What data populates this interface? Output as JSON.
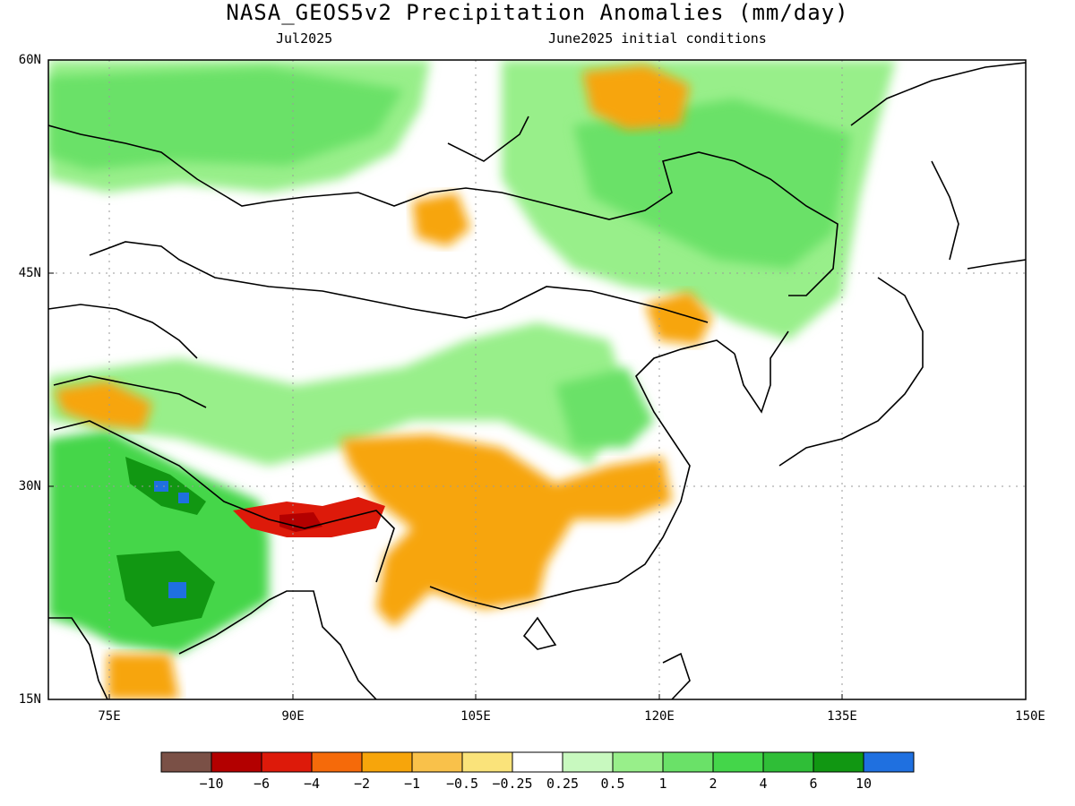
{
  "title": "NASA_GEOS5v2 Precipitation Anomalies (mm/day)",
  "subtitle_left": "Jul2025",
  "subtitle_right": "June2025 initial conditions",
  "axes": {
    "lat_labels": [
      "60N",
      "45N",
      "30N",
      "15N"
    ],
    "lat_values": [
      60,
      45,
      30,
      15
    ],
    "lon_labels": [
      "75E",
      "90E",
      "105E",
      "120E",
      "135E",
      "150E"
    ],
    "lon_values": [
      75,
      90,
      105,
      120,
      135,
      150
    ],
    "lat_range": [
      15,
      60
    ],
    "lon_range": [
      70,
      150
    ],
    "grid": "dotted"
  },
  "colorbar": {
    "labels": [
      "−10",
      "−6",
      "−4",
      "−2",
      "−1",
      "−0.5",
      "−0.25",
      "0.25",
      "0.5",
      "1",
      "2",
      "4",
      "6",
      "10"
    ],
    "colors": [
      "#7a5046",
      "#b30000",
      "#dd1a0a",
      "#f56a0a",
      "#f7a50b",
      "#f9c14a",
      "#fae37a",
      "#ffffff",
      "#c8f9bf",
      "#98ef8a",
      "#6ae168",
      "#44d64a",
      "#2fbe37",
      "#119712",
      "#1f70e0"
    ]
  },
  "regions": {
    "north_green": "#6ae168",
    "north_light": "#98ef8a",
    "india_wet": "#44d64a",
    "india_core": "#119712",
    "india_max": "#1f70e0",
    "china_dry": "#f7a50b",
    "tibet_dry": "#dd1a0a",
    "tibet_core": "#b30000"
  }
}
